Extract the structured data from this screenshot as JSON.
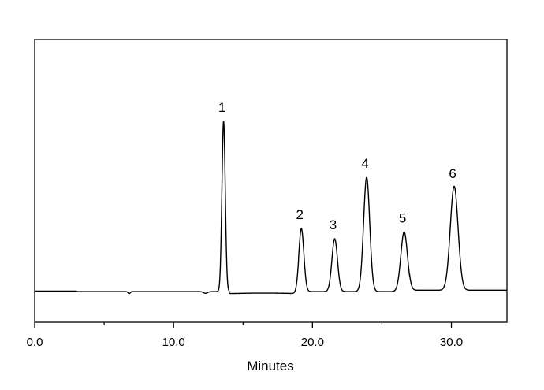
{
  "chart_data": {
    "type": "line",
    "title": "",
    "xlabel": "Minutes",
    "ylabel": "",
    "xlim": [
      0,
      34
    ],
    "ylim": [
      -18,
      148
    ],
    "x_ticks": [
      0,
      10,
      20,
      30
    ],
    "x_tick_labels": [
      "0.0",
      "10.0",
      "20.0",
      "30.0"
    ],
    "x_minor_ticks": [
      5,
      15,
      25
    ],
    "grid": false,
    "line_color": "#000000",
    "peaks": [
      {
        "label": "1",
        "time": 13.6,
        "height": 100,
        "width": 0.12
      },
      {
        "label": "2",
        "time": 19.2,
        "height": 37,
        "width": 0.18
      },
      {
        "label": "3",
        "time": 21.6,
        "height": 31,
        "width": 0.2
      },
      {
        "label": "4",
        "time": 23.9,
        "height": 67,
        "width": 0.22
      },
      {
        "label": "5",
        "time": 26.6,
        "height": 35,
        "width": 0.24
      },
      {
        "label": "6",
        "time": 30.2,
        "height": 61,
        "width": 0.28
      }
    ]
  }
}
